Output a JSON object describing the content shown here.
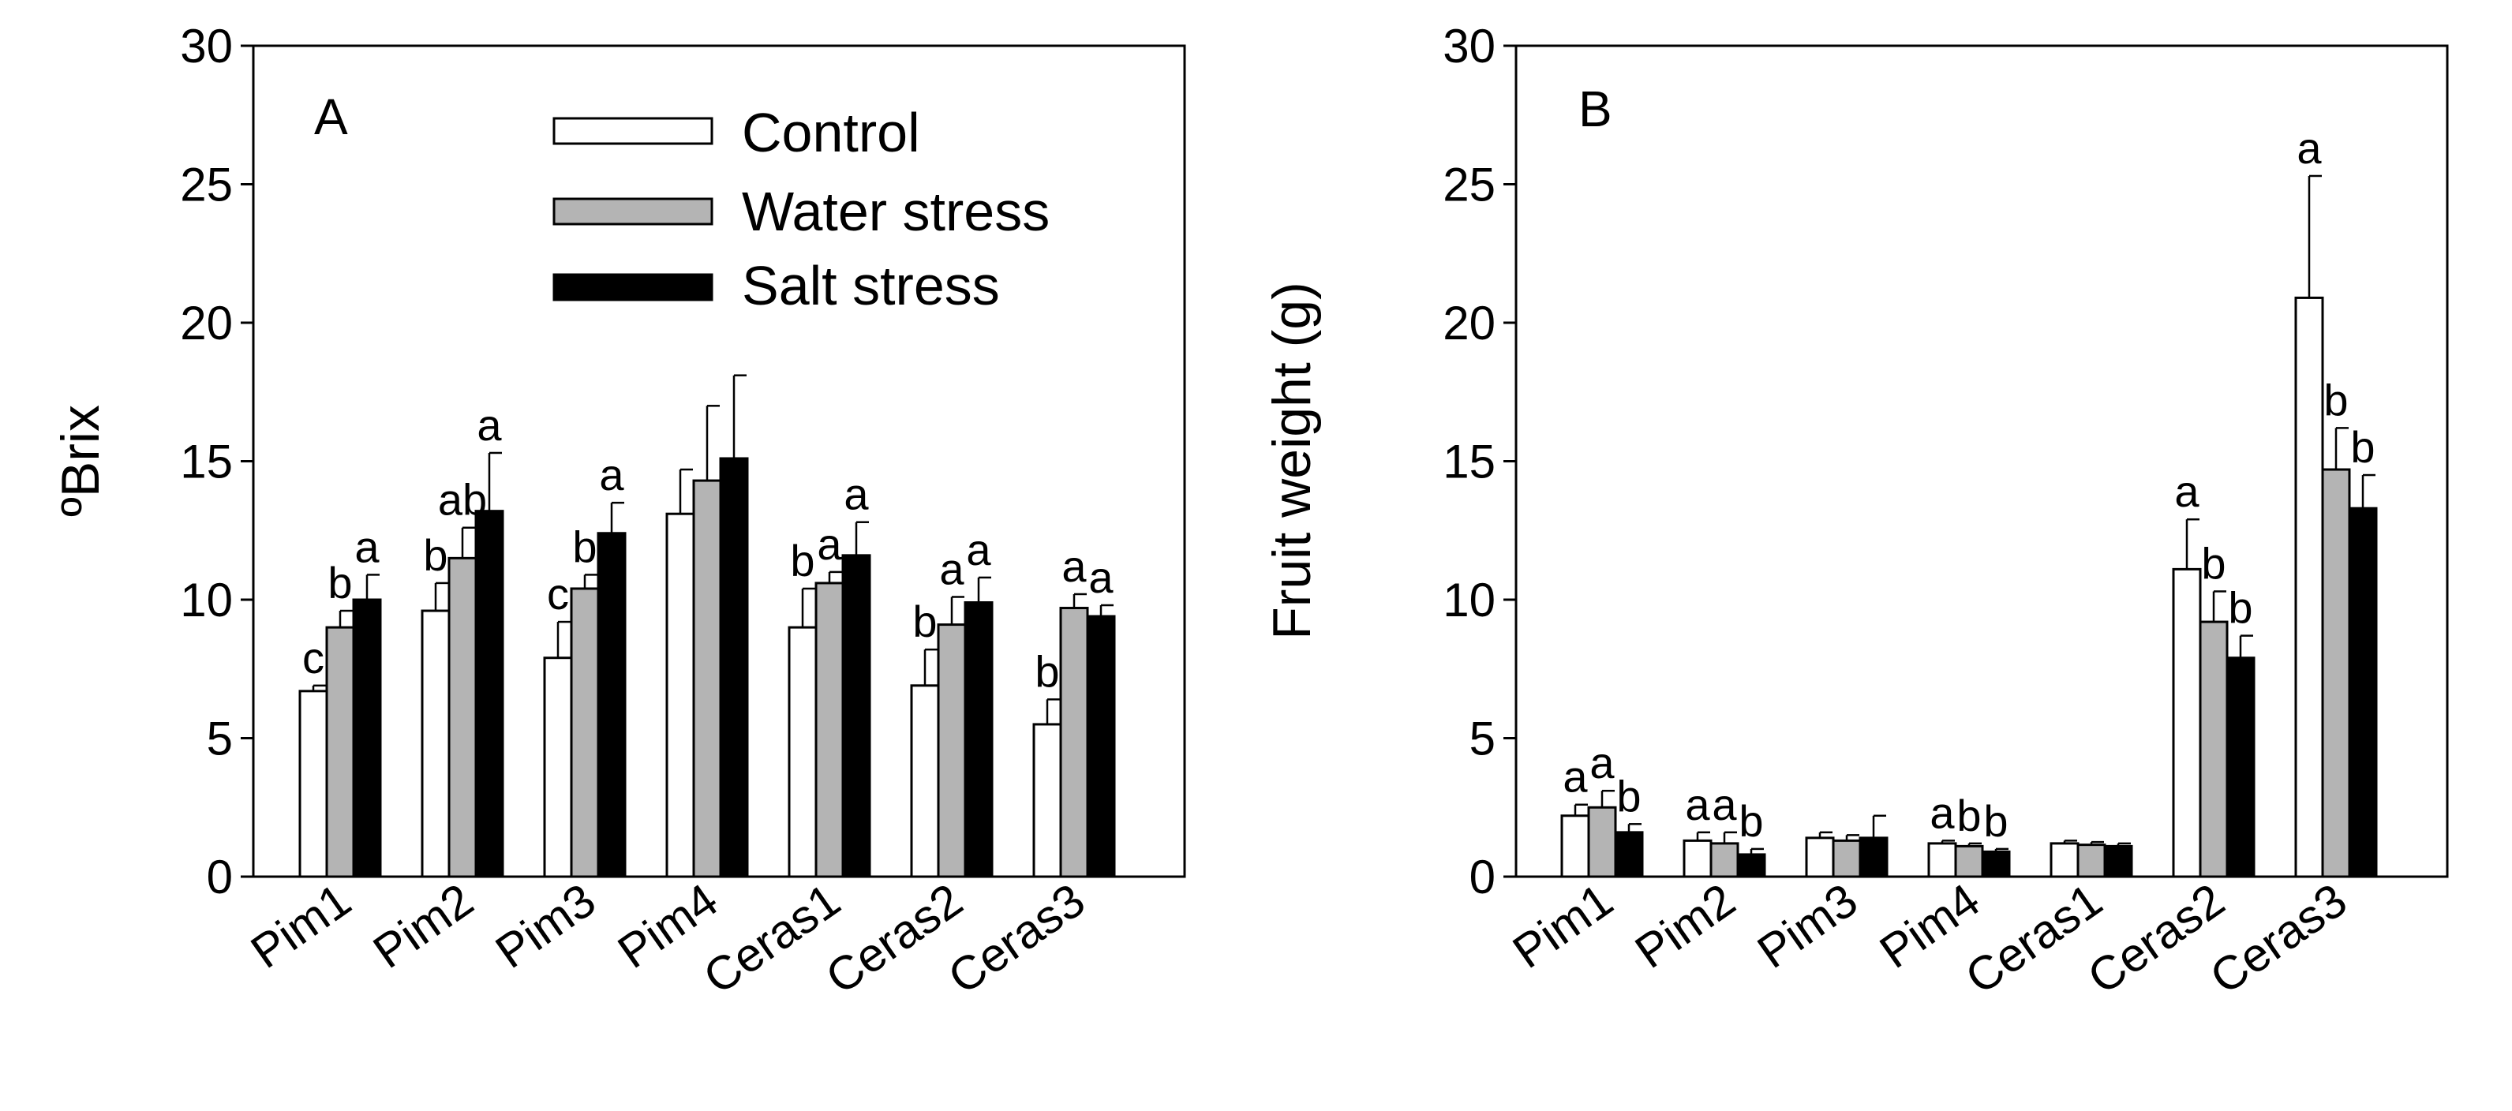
{
  "legend": [
    {
      "name": "Control",
      "color": "#ffffff"
    },
    {
      "name": "Water stress",
      "color": "#b4b4b4"
    },
    {
      "name": "Salt stress",
      "color": "#000000"
    }
  ],
  "chart_data": [
    {
      "type": "bar",
      "panel_label": "A",
      "title": "",
      "xlabel": "",
      "ylabel": "ºBrix",
      "ylim": [
        0,
        30
      ],
      "yticks": [
        0,
        5,
        10,
        15,
        20,
        25,
        30
      ],
      "legend_position": "top-right",
      "categories": [
        "Pim1",
        "Pim2",
        "Pim3",
        "Pim4",
        "Ceras1",
        "Ceras2",
        "Ceras3"
      ],
      "series": [
        {
          "name": "Control",
          "values": [
            6.7,
            9.6,
            7.9,
            13.1,
            9.0,
            6.9,
            5.5
          ],
          "errors": [
            0.2,
            1.0,
            1.3,
            1.6,
            1.4,
            1.3,
            0.9
          ],
          "letters": [
            "c",
            "b",
            "c",
            "",
            "b",
            "b",
            "b"
          ]
        },
        {
          "name": "Water stress",
          "values": [
            9.0,
            11.5,
            10.4,
            14.3,
            10.6,
            9.1,
            9.7
          ],
          "errors": [
            0.6,
            1.1,
            0.5,
            2.7,
            0.4,
            1.0,
            0.5
          ],
          "letters": [
            "b",
            "ab",
            "b",
            "",
            "a",
            "a",
            "a"
          ]
        },
        {
          "name": "Salt stress",
          "values": [
            10.0,
            13.2,
            12.4,
            15.1,
            11.6,
            9.9,
            9.4
          ],
          "errors": [
            0.9,
            2.1,
            1.1,
            3.0,
            1.2,
            0.9,
            0.4
          ],
          "letters": [
            "a",
            "a",
            "a",
            "",
            "a",
            "a",
            "a"
          ]
        }
      ]
    },
    {
      "type": "bar",
      "panel_label": "B",
      "title": "",
      "xlabel": "",
      "ylabel": "Fruit weight (g)",
      "ylim": [
        0,
        30
      ],
      "yticks": [
        0,
        5,
        10,
        15,
        20,
        25,
        30
      ],
      "categories": [
        "Pim1",
        "Pim2",
        "Pim3",
        "Pim4",
        "Ceras1",
        "Ceras2",
        "Ceras3"
      ],
      "series": [
        {
          "name": "Control",
          "values": [
            2.2,
            1.3,
            1.4,
            1.2,
            1.2,
            11.1,
            20.9
          ],
          "errors": [
            0.4,
            0.3,
            0.2,
            0.1,
            0.1,
            1.8,
            4.4
          ],
          "letters": [
            "a",
            "a",
            "",
            "a",
            "",
            "a",
            "a"
          ]
        },
        {
          "name": "Water stress",
          "values": [
            2.5,
            1.2,
            1.3,
            1.1,
            1.15,
            9.2,
            14.7
          ],
          "errors": [
            0.6,
            0.4,
            0.2,
            0.1,
            0.1,
            1.1,
            1.5
          ],
          "letters": [
            "a",
            "a",
            "",
            "b",
            "",
            "b",
            "b"
          ]
        },
        {
          "name": "Salt stress",
          "values": [
            1.6,
            0.8,
            1.4,
            0.9,
            1.1,
            7.9,
            13.3
          ],
          "errors": [
            0.3,
            0.2,
            0.8,
            0.1,
            0.1,
            0.8,
            1.2
          ],
          "letters": [
            "b",
            "b",
            "",
            "b",
            "",
            "b",
            "b"
          ]
        }
      ]
    }
  ]
}
